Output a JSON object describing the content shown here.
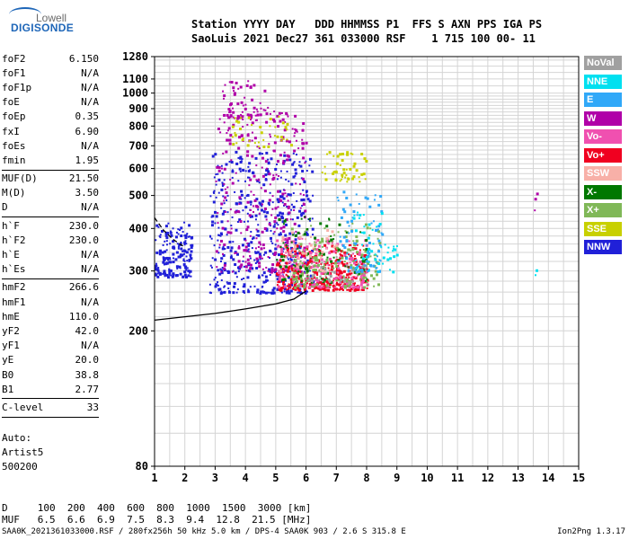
{
  "logo": {
    "top": "Lowell",
    "bottom": "DIGISONDE"
  },
  "header": {
    "line1": "Station YYYY DAY   DDD HHMMSS P1  FFS S AXN PPS IGA PS",
    "line2": "SaoLuis 2021 Dec27 361 033000 RSF    1 715 100 00- 11"
  },
  "params": [
    {
      "label": "foF2",
      "value": "6.150"
    },
    {
      "label": "foF1",
      "value": "N/A"
    },
    {
      "label": "foF1p",
      "value": "N/A"
    },
    {
      "label": "foE",
      "value": "N/A"
    },
    {
      "label": "foEp",
      "value": "0.35"
    },
    {
      "label": "fxI",
      "value": "6.90"
    },
    {
      "label": "foEs",
      "value": "N/A"
    },
    {
      "label": "fmin",
      "value": "1.95"
    },
    {
      "sep": true
    },
    {
      "label": "MUF(D)",
      "value": "21.50"
    },
    {
      "label": "M(D)",
      "value": "3.50"
    },
    {
      "label": "D",
      "value": "N/A"
    },
    {
      "sep": true
    },
    {
      "label": "h`F",
      "value": "230.0"
    },
    {
      "label": "h`F2",
      "value": "230.0"
    },
    {
      "label": "h`E",
      "value": "N/A"
    },
    {
      "label": "h`Es",
      "value": "N/A"
    },
    {
      "sep": true
    },
    {
      "label": "hmF2",
      "value": "266.6"
    },
    {
      "label": "hmF1",
      "value": "N/A"
    },
    {
      "label": "hmE",
      "value": "110.0"
    },
    {
      "label": "yF2",
      "value": "42.0"
    },
    {
      "label": "yF1",
      "value": "N/A"
    },
    {
      "label": "yE",
      "value": "20.0"
    },
    {
      "label": "B0",
      "value": "38.8"
    },
    {
      "label": "B1",
      "value": "2.77"
    },
    {
      "sep": true
    },
    {
      "label": "C-level",
      "value": "33"
    },
    {
      "sep": true
    }
  ],
  "auto": {
    "line1": "Auto:",
    "line2": "Artist5",
    "line3": "500200"
  },
  "legend": [
    {
      "label": "NoVal",
      "color": "#a0a0a0"
    },
    {
      "label": "NNE",
      "color": "#00e0f0"
    },
    {
      "label": "E",
      "color": "#30a8f8"
    },
    {
      "label": "W",
      "color": "#b000a8"
    },
    {
      "label": "Vo-",
      "color": "#f050b0"
    },
    {
      "label": "Vo+",
      "color": "#f00020"
    },
    {
      "label": "SSW",
      "color": "#f8b0a8"
    },
    {
      "label": "X-",
      "color": "#007800"
    },
    {
      "label": "X+",
      "color": "#80b858"
    },
    {
      "label": "SSE",
      "color": "#c8d000"
    },
    {
      "label": "NNW",
      "color": "#2020d8"
    }
  ],
  "footer": {
    "d_row": "D     100  200  400  600  800  1000  1500  3000 [km]",
    "muf_row": "MUF   6.5  6.6  6.9  7.5  8.3  9.4  12.8  21.5 [MHz]",
    "file_line": "SAA0K_2021361033000.RSF / 280fx256h 50 kHz 5.0 km / DPS-4 SAA0K 903 / 2.6 S 315.8 E",
    "version": "Ion2Png 1.3.17"
  },
  "chart_data": {
    "type": "scatter",
    "title": "",
    "xlabel": "",
    "ylabel": "",
    "xlim": [
      1,
      15
    ],
    "ylim": [
      80,
      1280
    ],
    "y_scale": "log",
    "x_ticks": [
      1,
      2,
      3,
      4,
      5,
      6,
      7,
      8,
      9,
      10,
      11,
      12,
      13,
      14,
      15
    ],
    "y_ticks": [
      80,
      200,
      300,
      400,
      500,
      600,
      700,
      800,
      900,
      1000,
      1100,
      1280
    ],
    "grid": true,
    "series": [
      {
        "name": "trace",
        "color": "#000000",
        "points": [
          [
            1,
            215
          ],
          [
            2,
            220
          ],
          [
            3,
            225
          ],
          [
            4,
            232
          ],
          [
            5,
            240
          ],
          [
            5.6,
            248
          ],
          [
            6,
            262
          ]
        ]
      },
      {
        "name": "trace-dashed",
        "color": "#000000",
        "points": [
          [
            1,
            430
          ],
          [
            1.3,
            395
          ],
          [
            1.6,
            372
          ],
          [
            2,
            352
          ]
        ]
      }
    ],
    "clusters": [
      {
        "name": "NNW",
        "x": [
          1,
          2.2
        ],
        "y": [
          290,
          420
        ],
        "n": 180
      },
      {
        "name": "NNW",
        "x": [
          2.8,
          6.2
        ],
        "y": [
          260,
          680
        ],
        "n": 520
      },
      {
        "name": "W",
        "x": [
          3,
          6
        ],
        "y": [
          300,
          900
        ],
        "n": 320
      },
      {
        "name": "W",
        "x": [
          3.2,
          4.8
        ],
        "y": [
          850,
          1100
        ],
        "n": 60
      },
      {
        "name": "Vo+",
        "x": [
          5,
          8
        ],
        "y": [
          265,
          360
        ],
        "n": 380
      },
      {
        "name": "Vo-",
        "x": [
          5,
          8
        ],
        "y": [
          270,
          380
        ],
        "n": 180
      },
      {
        "name": "X+",
        "x": [
          5.5,
          8.4
        ],
        "y": [
          270,
          420
        ],
        "n": 160
      },
      {
        "name": "X-",
        "x": [
          5,
          8
        ],
        "y": [
          280,
          440
        ],
        "n": 90
      },
      {
        "name": "SSE",
        "x": [
          6.5,
          8
        ],
        "y": [
          550,
          680
        ],
        "n": 50
      },
      {
        "name": "SSE",
        "x": [
          3.5,
          5.5
        ],
        "y": [
          700,
          860
        ],
        "n": 40
      },
      {
        "name": "E",
        "x": [
          7,
          8.5
        ],
        "y": [
          300,
          520
        ],
        "n": 90
      },
      {
        "name": "NNE",
        "x": [
          7.5,
          9
        ],
        "y": [
          300,
          460
        ],
        "n": 50
      },
      {
        "name": "SSW",
        "x": [
          5,
          7
        ],
        "y": [
          300,
          400
        ],
        "n": 40
      },
      {
        "name": "NoVal",
        "x": [
          6,
          8
        ],
        "y": [
          280,
          340
        ],
        "n": 40
      },
      {
        "name": "W",
        "x": [
          13.5,
          13.6
        ],
        "y": [
          420,
          540
        ],
        "n": 3
      },
      {
        "name": "NNE",
        "x": [
          13.5,
          13.6
        ],
        "y": [
          290,
          400
        ],
        "n": 2
      }
    ]
  }
}
